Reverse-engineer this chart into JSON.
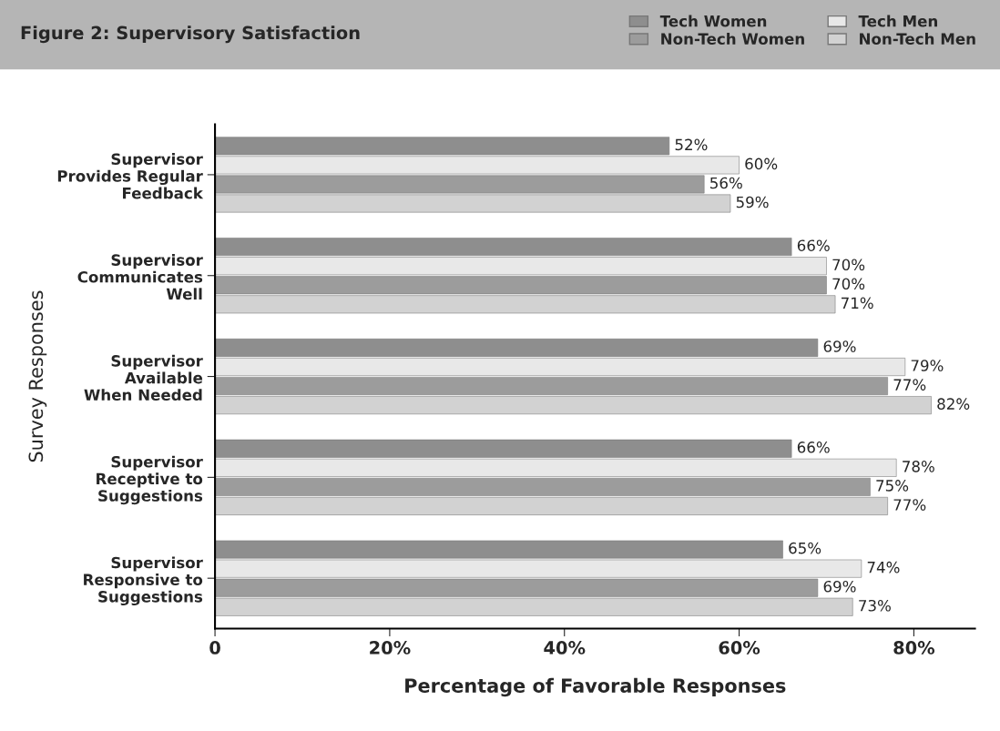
{
  "chart_data": {
    "type": "bar",
    "orientation": "horizontal",
    "title": "Figure 2: Supervisory Satisfaction",
    "xlabel": "Percentage of Favorable Responses",
    "ylabel": "Survey Responses",
    "categories": [
      "Supervisor\nProvides Regular\nFeedback",
      "Supervisor\nCommunicates\nWell",
      "Supervisor\nAvailable\nWhen Needed",
      "Supervisor\nReceptive to\nSuggestions",
      "Supervisor\nResponsive to\nSuggestions"
    ],
    "series": [
      {
        "name": "Tech Women",
        "color": "#8e8e8e",
        "values": [
          52,
          66,
          69,
          66,
          65
        ],
        "value_labels": [
          "52%",
          "66%",
          "69%",
          "66%",
          "65%"
        ]
      },
      {
        "name": "Tech Men",
        "color": "#e8e8e8",
        "values": [
          60,
          70,
          79,
          78,
          74
        ],
        "value_labels": [
          "60%",
          "70%",
          "79%",
          "78%",
          "74%"
        ]
      },
      {
        "name": "Non-Tech Women",
        "color": "#9c9c9c",
        "values": [
          56,
          70,
          77,
          75,
          69
        ],
        "value_labels": [
          "56%",
          "70%",
          "77%",
          "75%",
          "69%"
        ]
      },
      {
        "name": "Non-Tech Men",
        "color": "#d2d2d2",
        "values": [
          59,
          71,
          82,
          77,
          73
        ],
        "value_labels": [
          "59%",
          "71%",
          "82%",
          "77%",
          "73%"
        ]
      }
    ],
    "xlim": [
      0,
      87
    ],
    "xticks": [
      0,
      {
        "value": 20,
        "label": "20%"
      },
      {
        "value": 40,
        "label": "40%"
      },
      {
        "value": 60,
        "label": "60%"
      },
      {
        "value": 80,
        "label": "80%"
      }
    ],
    "grid": false,
    "legend": "top right"
  }
}
